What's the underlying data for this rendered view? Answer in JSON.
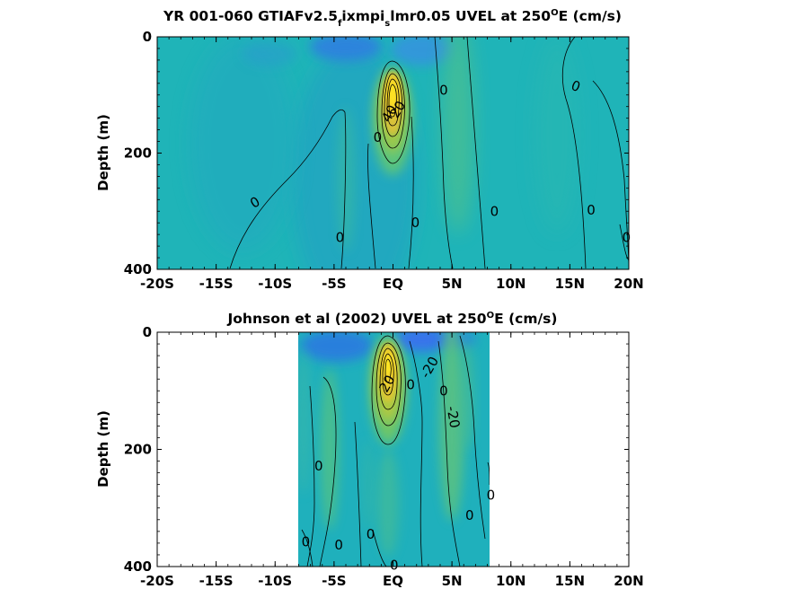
{
  "chart_data": [
    {
      "type": "heatmap",
      "title_parts": [
        "YR 001-060 GTIAFv2.5",
        "f",
        "ixmpi",
        "s",
        "lmr0.05 UVEL at 250",
        "O",
        "E (cm/s)"
      ],
      "title_rich": [
        {
          "t": "YR 001-060 GTIAFv2.5",
          "k": "n"
        },
        {
          "t": "f",
          "k": "sub"
        },
        {
          "t": "ixmpi",
          "k": "n"
        },
        {
          "t": "s",
          "k": "sub"
        },
        {
          "t": "lmr0.05 UVEL at 250",
          "k": "n"
        },
        {
          "t": "O",
          "k": "sup"
        },
        {
          "t": "E (cm/s)",
          "k": "n"
        }
      ],
      "ylabel": "Depth (m)",
      "xlim": [
        -20,
        20
      ],
      "ylim": [
        0,
        400
      ],
      "y_reversed": true,
      "x_ticks": [
        -20,
        -15,
        -10,
        -5,
        0,
        5,
        10,
        15,
        20
      ],
      "x_tick_labels": [
        "-20S",
        "-15S",
        "-10S",
        "-5S",
        "EQ",
        "5N",
        "10N",
        "15N",
        "20N"
      ],
      "y_ticks": [
        0,
        200,
        400
      ],
      "y_tick_labels": [
        "0",
        "200",
        "400"
      ],
      "data_extent": [
        -20,
        20
      ],
      "contour_labels": [
        {
          "text": "0",
          "x": -11.7,
          "depth": 285,
          "rotate": -30
        },
        {
          "text": "0",
          "x": -4.5,
          "depth": 345,
          "rotate": 0
        },
        {
          "text": "0",
          "x": -1.3,
          "depth": 173,
          "rotate": 0
        },
        {
          "text": "40",
          "x": -0.3,
          "depth": 132,
          "rotate": -60
        },
        {
          "text": "20",
          "x": 0.4,
          "depth": 125,
          "rotate": -60
        },
        {
          "text": "0",
          "x": 4.3,
          "depth": 92,
          "rotate": 0
        },
        {
          "text": "0",
          "x": 1.9,
          "depth": 320,
          "rotate": 0
        },
        {
          "text": "0",
          "x": 8.6,
          "depth": 300,
          "rotate": 0
        },
        {
          "text": "0",
          "x": 15.5,
          "depth": 85,
          "rotate": 20
        },
        {
          "text": "0",
          "x": 16.8,
          "depth": 298,
          "rotate": 0
        },
        {
          "text": "0",
          "x": 19.8,
          "depth": 345,
          "rotate": 0
        }
      ]
    },
    {
      "type": "heatmap",
      "title_parts": [
        "Johnson et al (2002) UVEL at 250",
        "O",
        "E (cm/s)"
      ],
      "title_rich": [
        {
          "t": "Johnson et al (2002) UVEL at 250",
          "k": "n"
        },
        {
          "t": "O",
          "k": "sup"
        },
        {
          "t": "E (cm/s)",
          "k": "n"
        }
      ],
      "ylabel": "Depth (m)",
      "xlim": [
        -20,
        20
      ],
      "ylim": [
        0,
        400
      ],
      "y_reversed": true,
      "x_ticks": [
        -20,
        -15,
        -10,
        -5,
        0,
        5,
        10,
        15,
        20
      ],
      "x_tick_labels": [
        "-20S",
        "-15S",
        "-10S",
        "-5S",
        "EQ",
        "5N",
        "10N",
        "15N",
        "20N"
      ],
      "y_ticks": [
        0,
        200,
        400
      ],
      "y_tick_labels": [
        "0",
        "200",
        "400"
      ],
      "data_extent": [
        -8,
        8.3
      ],
      "contour_labels": [
        {
          "text": "0",
          "x": -6.3,
          "depth": 228,
          "rotate": 0
        },
        {
          "text": "0",
          "x": -7.4,
          "depth": 358,
          "rotate": 0
        },
        {
          "text": "0",
          "x": -4.6,
          "depth": 363,
          "rotate": 0
        },
        {
          "text": "0",
          "x": -1.9,
          "depth": 345,
          "rotate": 0
        },
        {
          "text": "20",
          "x": -0.5,
          "depth": 88,
          "rotate": -60
        },
        {
          "text": "0",
          "x": 1.5,
          "depth": 90,
          "rotate": 0
        },
        {
          "text": "-20",
          "x": 3.1,
          "depth": 60,
          "rotate": -60
        },
        {
          "text": "0",
          "x": 4.3,
          "depth": 100,
          "rotate": 0
        },
        {
          "text": "-20",
          "x": 5.1,
          "depth": 145,
          "rotate": 80
        },
        {
          "text": "0",
          "x": 6.5,
          "depth": 313,
          "rotate": 0
        },
        {
          "text": "0",
          "x": 8.3,
          "depth": 278,
          "rotate": 0
        },
        {
          "text": "0",
          "x": 0.1,
          "depth": 398,
          "rotate": 0
        }
      ]
    }
  ]
}
